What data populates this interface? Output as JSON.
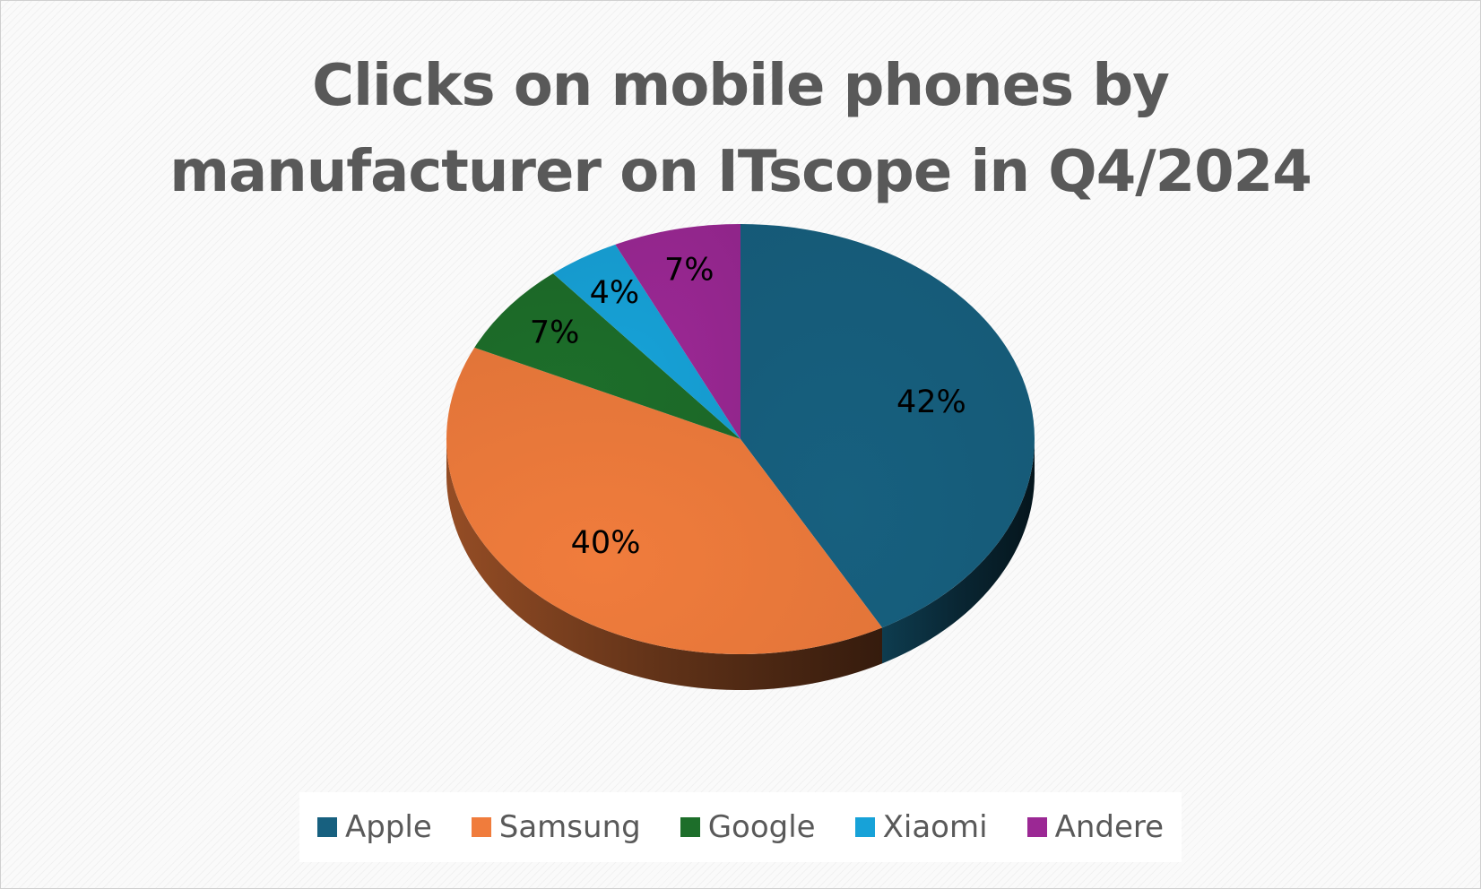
{
  "chart_data": {
    "type": "pie",
    "title": [
      "Clicks on mobile phones by",
      "manufacturer on ITscope in Q4/2024"
    ],
    "start_angle_deg": 0,
    "direction": "clockwise",
    "style": "3d",
    "legend_position": "bottom",
    "slices": [
      {
        "name": "Apple",
        "value": 42,
        "label": "42%",
        "color": "#17607f"
      },
      {
        "name": "Samsung",
        "value": 40,
        "label": "40%",
        "color": "#f07c3c"
      },
      {
        "name": "Google",
        "value": 7,
        "label": "7%",
        "color": "#1d6e2a"
      },
      {
        "name": "Xiaomi",
        "value": 4,
        "label": "4%",
        "color": "#17a2d8"
      },
      {
        "name": "Andere",
        "value": 7,
        "label": "7%",
        "color": "#9b2894"
      }
    ]
  }
}
